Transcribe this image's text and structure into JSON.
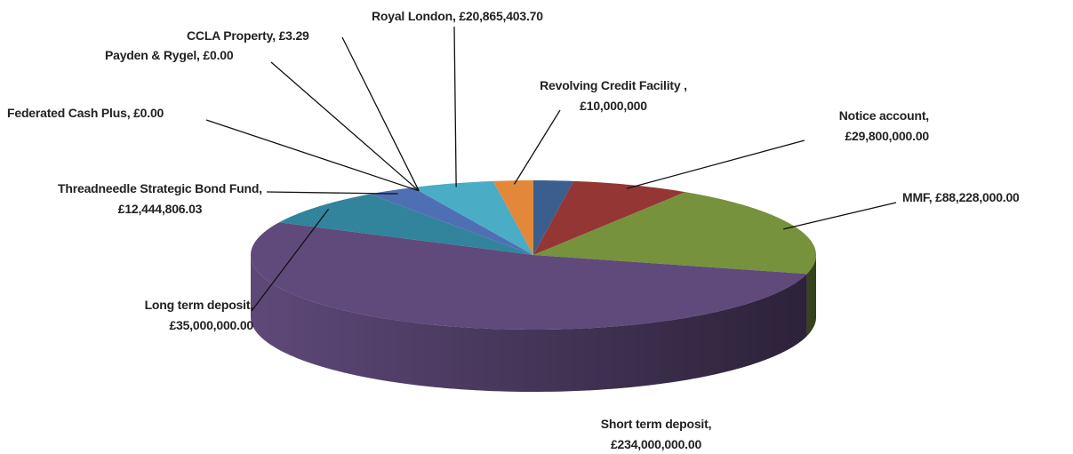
{
  "chart_data": {
    "type": "pie3d",
    "categories": [
      null,
      "Notice account",
      "MMF",
      "Short term deposit",
      "Long term deposit",
      "Threadneedle Strategic Bond Fund",
      "Federated Cash Plus",
      "Payden & Rygel",
      "CCLA Property",
      "Royal London",
      "Revolving Credit Facility "
    ],
    "values": [
      10000000,
      29800000,
      88228000,
      234000000,
      35000000,
      12444806.03,
      0,
      0,
      3.29,
      20865403.7,
      10000000
    ],
    "value_labels": [
      null,
      "£29,800,000.00",
      "£88,228,000.00",
      "£234,000,000.00",
      "£35,000,000.00",
      "£12,444,806.03",
      "£0.00",
      "£0.00",
      "£3.29",
      "£20,865,403.70",
      "£10,000,000"
    ],
    "colors": [
      "#3a5f8f",
      "#943634",
      "#76923c",
      "#604a7b",
      "#31849b",
      "#4f6fb5",
      "#4f6fb5",
      "#4f6fb5",
      "#4bacc6",
      "#4bacc6",
      "#e3883a"
    ]
  }
}
